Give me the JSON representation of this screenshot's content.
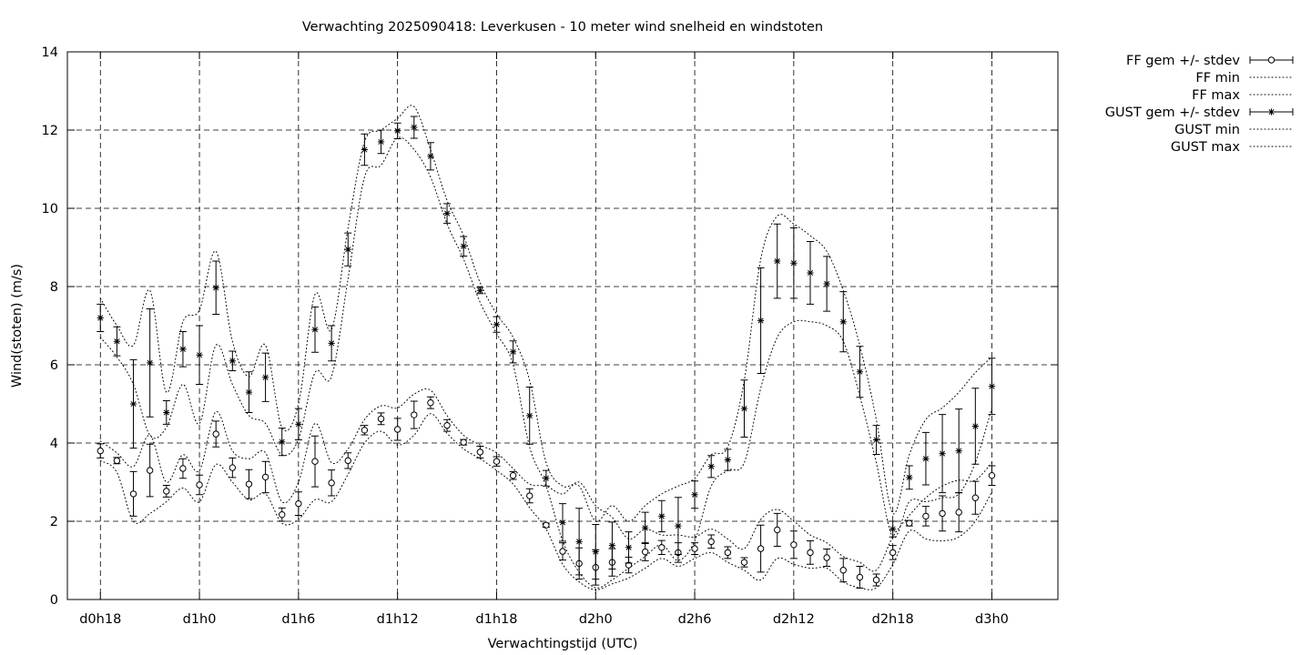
{
  "chart_data": {
    "type": "line",
    "title": "Verwachting 2025090418: Leverkusen - 10 meter wind snelheid en windstoten",
    "xlabel": "Verwachtingstijd (UTC)",
    "ylabel": "Wind(stoten) (m/s)",
    "x_range_hours": [
      -2,
      58
    ],
    "ylim": [
      0,
      14
    ],
    "y_ticks": [
      "0",
      "2",
      "4",
      "6",
      "8",
      "10",
      "12",
      "14"
    ],
    "x_ticks": [
      {
        "hour": 0,
        "label": "d0h18"
      },
      {
        "hour": 6,
        "label": "d1h0"
      },
      {
        "hour": 12,
        "label": "d1h6"
      },
      {
        "hour": 18,
        "label": "d1h12"
      },
      {
        "hour": 24,
        "label": "d1h18"
      },
      {
        "hour": 30,
        "label": "d2h0"
      },
      {
        "hour": 36,
        "label": "d2h6"
      },
      {
        "hour": 42,
        "label": "d2h12"
      },
      {
        "hour": 48,
        "label": "d2h18"
      },
      {
        "hour": 54,
        "label": "d3h0"
      }
    ],
    "grid": true,
    "legend_position": "outside-top-right",
    "x_hours": [
      0,
      1,
      2,
      3,
      4,
      5,
      6,
      7,
      8,
      9,
      10,
      11,
      12,
      13,
      14,
      15,
      16,
      17,
      18,
      19,
      20,
      21,
      22,
      23,
      24,
      25,
      26,
      27,
      28,
      29,
      30,
      31,
      32,
      33,
      34,
      35,
      36,
      37,
      38,
      39,
      40,
      41,
      42,
      43,
      44,
      45,
      46,
      47,
      48,
      49,
      50,
      51,
      52,
      53,
      54
    ],
    "series": [
      {
        "name": "FF gem +/- stdev",
        "marker": "circle",
        "errorbars": true,
        "values": [
          3.8,
          3.55,
          2.7,
          3.3,
          2.77,
          3.35,
          2.93,
          4.23,
          3.37,
          2.95,
          3.13,
          2.17,
          2.45,
          3.53,
          2.98,
          3.55,
          4.33,
          4.62,
          4.35,
          4.72,
          5.03,
          4.45,
          4.02,
          3.77,
          3.53,
          3.17,
          2.65,
          1.9,
          1.23,
          0.92,
          0.82,
          0.95,
          0.88,
          1.22,
          1.33,
          1.2,
          1.3,
          1.48,
          1.2,
          0.95,
          1.3,
          1.78,
          1.4,
          1.2,
          1.07,
          0.75,
          0.57,
          0.5,
          1.2,
          1.95,
          2.13,
          2.2,
          2.23,
          2.6,
          3.17
        ],
        "stdev": [
          0.18,
          0.08,
          0.57,
          0.67,
          0.15,
          0.25,
          0.25,
          0.33,
          0.25,
          0.37,
          0.4,
          0.17,
          0.3,
          0.65,
          0.33,
          0.2,
          0.12,
          0.15,
          0.28,
          0.35,
          0.15,
          0.15,
          0.07,
          0.15,
          0.12,
          0.1,
          0.18,
          0.05,
          0.22,
          0.4,
          0.45,
          0.35,
          0.2,
          0.23,
          0.18,
          0.25,
          0.15,
          0.17,
          0.15,
          0.12,
          0.6,
          0.42,
          0.35,
          0.3,
          0.22,
          0.3,
          0.28,
          0.15,
          0.18,
          0.07,
          0.25,
          0.45,
          0.5,
          0.42,
          0.25
        ]
      },
      {
        "name": "FF min",
        "style": "dotted",
        "values": [
          3.55,
          3.25,
          2.0,
          2.2,
          2.5,
          2.85,
          2.5,
          3.45,
          3.0,
          2.55,
          2.7,
          1.95,
          2.05,
          2.55,
          2.5,
          3.2,
          4.0,
          4.3,
          3.95,
          4.2,
          4.75,
          4.25,
          3.85,
          3.6,
          3.3,
          2.95,
          2.35,
          1.8,
          0.9,
          0.45,
          0.25,
          0.4,
          0.55,
          0.8,
          1.05,
          0.85,
          1.05,
          1.2,
          0.95,
          0.75,
          0.5,
          1.05,
          0.9,
          0.8,
          0.8,
          0.45,
          0.3,
          0.3,
          0.9,
          1.75,
          1.55,
          1.5,
          1.6,
          2.0,
          2.75
        ]
      },
      {
        "name": "FF max",
        "style": "dotted",
        "values": [
          4.05,
          3.75,
          3.4,
          4.2,
          3.0,
          3.7,
          3.3,
          4.8,
          3.8,
          3.6,
          3.75,
          2.5,
          3.0,
          4.5,
          3.5,
          3.85,
          4.6,
          4.95,
          4.9,
          5.25,
          5.35,
          4.7,
          4.2,
          3.95,
          3.75,
          3.35,
          2.95,
          2.9,
          2.7,
          3.0,
          2.4,
          2.1,
          1.55,
          1.8,
          1.65,
          1.65,
          1.6,
          1.8,
          1.55,
          1.3,
          2.05,
          2.3,
          2.0,
          1.65,
          1.45,
          1.1,
          0.95,
          0.75,
          1.6,
          2.15,
          2.6,
          2.9,
          3.05,
          3.05,
          3.5
        ]
      },
      {
        "name": "GUST gem +/- stdev",
        "marker": "star",
        "errorbars": true,
        "values": [
          7.2,
          6.6,
          5.0,
          6.05,
          4.78,
          6.4,
          6.25,
          7.97,
          6.1,
          5.3,
          5.68,
          4.03,
          4.48,
          6.9,
          6.55,
          8.95,
          11.5,
          11.7,
          11.98,
          12.07,
          11.33,
          9.87,
          9.03,
          7.9,
          7.03,
          6.33,
          4.7,
          3.1,
          1.97,
          1.48,
          1.22,
          1.38,
          1.33,
          1.83,
          2.13,
          1.88,
          2.68,
          3.4,
          3.57,
          4.88,
          7.13,
          8.65,
          8.6,
          8.35,
          8.07,
          7.1,
          5.82,
          4.08,
          1.8,
          3.12,
          3.6,
          3.73,
          3.8,
          4.43,
          5.45
        ],
        "stdev": [
          0.35,
          0.37,
          1.13,
          1.38,
          0.3,
          0.45,
          0.75,
          0.68,
          0.25,
          0.52,
          0.62,
          0.35,
          0.4,
          0.58,
          0.45,
          0.42,
          0.4,
          0.3,
          0.2,
          0.28,
          0.35,
          0.25,
          0.25,
          0.08,
          0.2,
          0.28,
          0.73,
          0.2,
          0.48,
          0.85,
          0.7,
          0.6,
          0.4,
          0.4,
          0.4,
          0.73,
          0.35,
          0.28,
          0.27,
          0.73,
          1.35,
          0.95,
          0.9,
          0.8,
          0.7,
          0.77,
          0.65,
          0.37,
          0.2,
          0.3,
          0.67,
          1.0,
          1.07,
          0.97,
          0.72
        ]
      },
      {
        "name": "GUST min",
        "style": "dotted",
        "values": [
          6.7,
          6.2,
          5.5,
          4.2,
          4.4,
          5.5,
          4.5,
          6.5,
          5.5,
          4.7,
          4.5,
          3.7,
          4.1,
          5.8,
          5.7,
          8.2,
          10.8,
          11.1,
          11.8,
          11.5,
          10.8,
          9.6,
          8.7,
          7.6,
          6.8,
          6.0,
          3.9,
          2.9,
          1.5,
          0.7,
          0.3,
          0.5,
          0.8,
          1.1,
          1.4,
          1.0,
          1.5,
          2.9,
          3.3,
          3.5,
          5.4,
          6.7,
          7.1,
          7.1,
          7.0,
          6.6,
          5.2,
          3.5,
          1.6,
          2.5,
          2.5,
          2.6,
          2.7,
          3.5,
          4.9
        ]
      },
      {
        "name": "GUST max",
        "style": "dotted",
        "values": [
          7.7,
          7.0,
          6.5,
          7.9,
          5.3,
          7.1,
          7.4,
          8.9,
          6.6,
          5.7,
          6.5,
          4.4,
          5.0,
          7.8,
          6.9,
          9.5,
          11.7,
          12.0,
          12.3,
          12.6,
          11.5,
          10.2,
          9.3,
          8.1,
          7.3,
          6.7,
          5.6,
          3.5,
          2.9,
          2.9,
          2.0,
          2.4,
          2.0,
          2.4,
          2.7,
          2.9,
          3.1,
          3.7,
          3.9,
          5.6,
          8.7,
          9.8,
          9.6,
          9.3,
          8.9,
          7.9,
          6.5,
          4.6,
          2.2,
          3.7,
          4.6,
          4.9,
          5.3,
          5.8,
          6.2
        ]
      }
    ]
  }
}
